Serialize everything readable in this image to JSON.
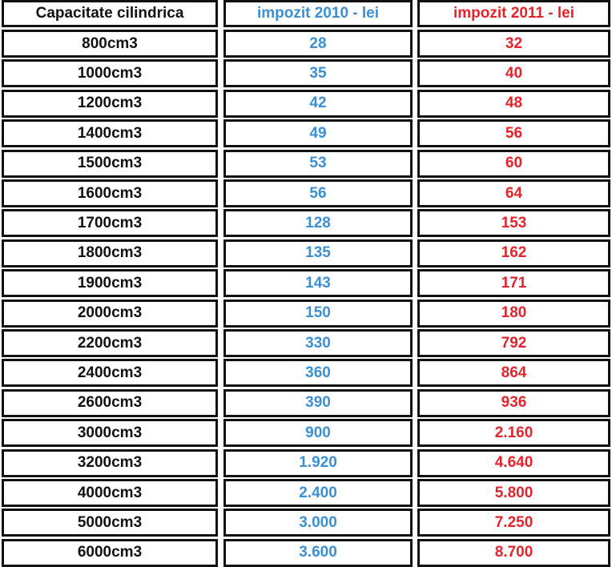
{
  "table": {
    "header": [
      "Capacitate cilindrica",
      "impozit 2010 - lei",
      "impozit 2011 - lei"
    ],
    "rows": [
      [
        "800cm3",
        "28",
        "32"
      ],
      [
        "1000cm3",
        "35",
        "40"
      ],
      [
        "1200cm3",
        "42",
        "48"
      ],
      [
        "1400cm3",
        "49",
        "56"
      ],
      [
        "1500cm3",
        "53",
        "60"
      ],
      [
        "1600cm3",
        "56",
        "64"
      ],
      [
        "1700cm3",
        "128",
        "153"
      ],
      [
        "1800cm3",
        "135",
        "162"
      ],
      [
        "1900cm3",
        "143",
        "171"
      ],
      [
        "2000cm3",
        "150",
        "180"
      ],
      [
        "2200cm3",
        "330",
        "792"
      ],
      [
        "2400cm3",
        "360",
        "864"
      ],
      [
        "2600cm3",
        "390",
        "936"
      ],
      [
        "3000cm3",
        "900",
        "2.160"
      ],
      [
        "3200cm3",
        "1.920",
        "4.640"
      ],
      [
        "4000cm3",
        "2.400",
        "5.800"
      ],
      [
        "5000cm3",
        "3.000",
        "7.250"
      ],
      [
        "6000cm3",
        "3.600",
        "8.700"
      ]
    ]
  }
}
